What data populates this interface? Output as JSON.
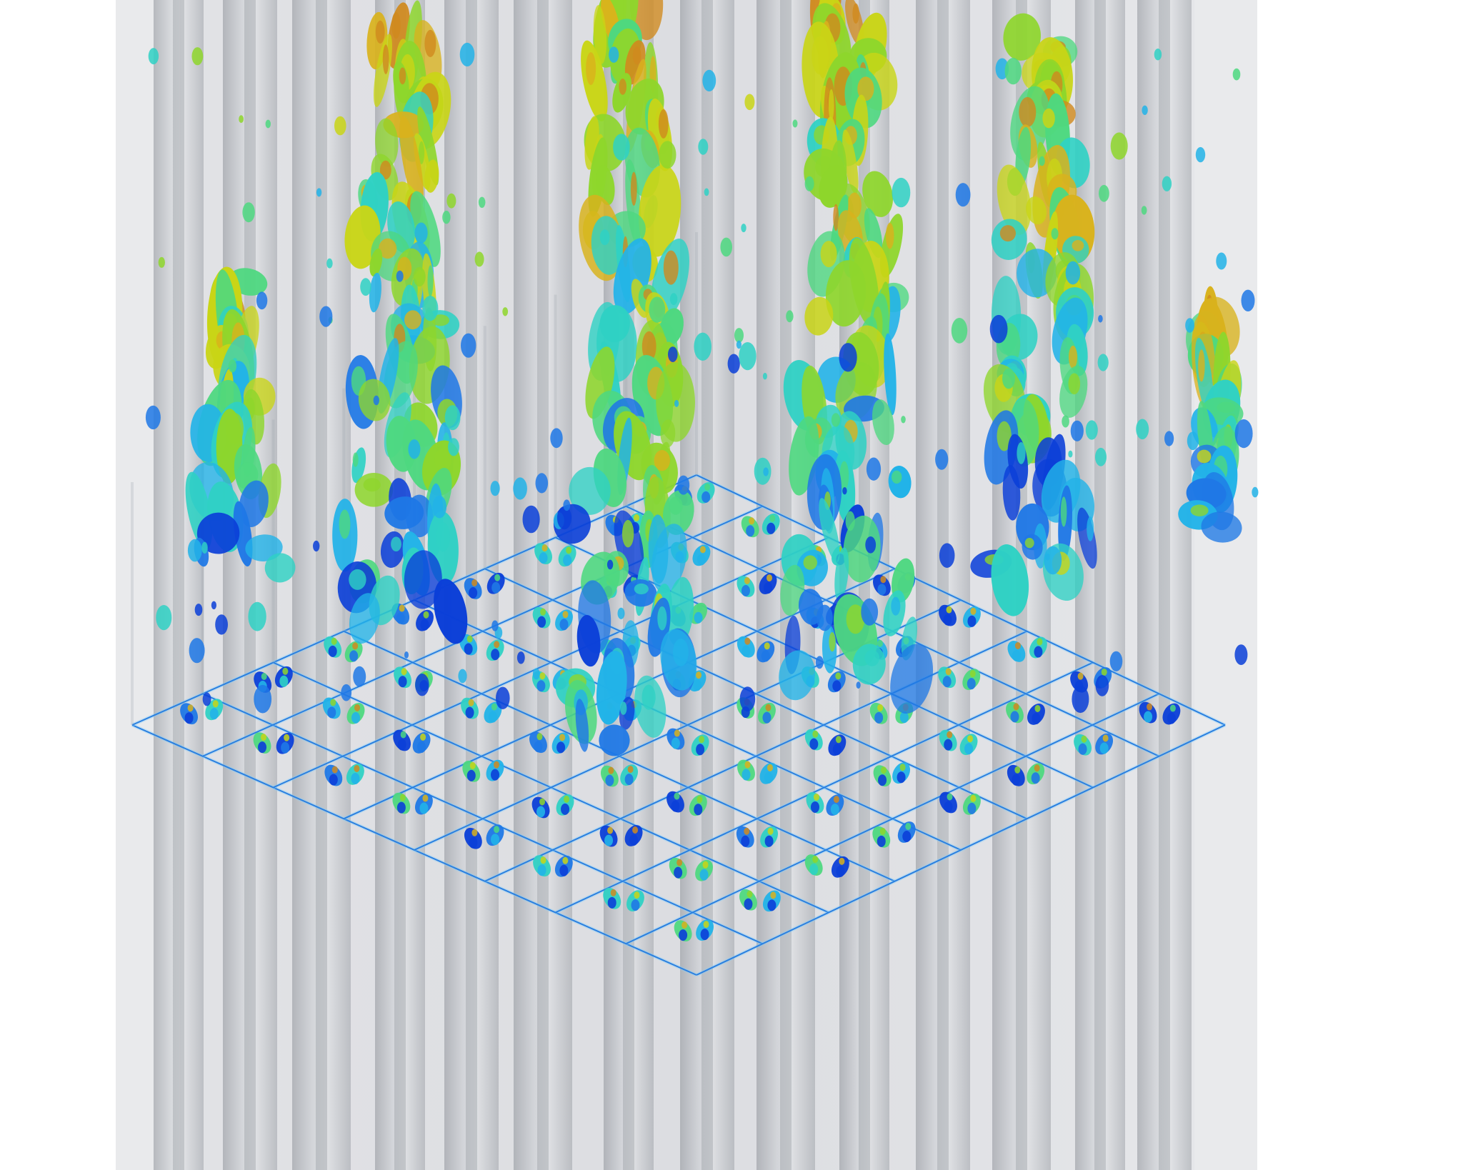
{
  "scene": {
    "colors": {
      "background": "#ffffff",
      "domain_fill": "#e4e5e8",
      "rod_dark": "#8d9198",
      "rod_mid": "#b9bcc1",
      "rod_light": "#d5d7db",
      "grid_line": "#2a7fe0",
      "grid_glow": "#7fd0ff"
    },
    "grid": {
      "rows": 8,
      "cols": 8
    },
    "colormap": [
      "#0b3fd8",
      "#1f78e6",
      "#22b3e8",
      "#2fd1c4",
      "#4ed880",
      "#8ed62c",
      "#c9d516",
      "#d9b21c",
      "#d08a1e"
    ],
    "icons": {
      "rod-bundle": "rod-bundle-icon",
      "spacer-grid": "spacer-grid-icon",
      "vortex": "vortex-isosurface-icon"
    }
  }
}
